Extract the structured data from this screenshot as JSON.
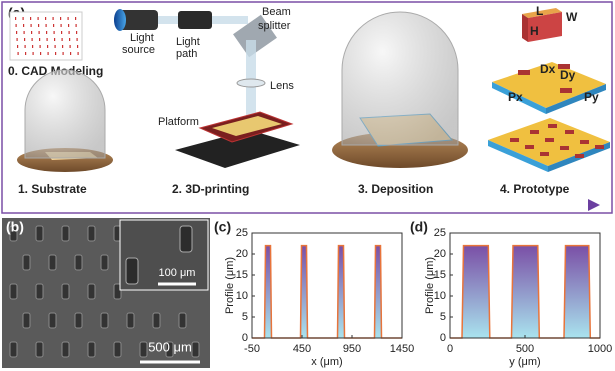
{
  "panel_a": {
    "label": "(a)",
    "light_source": [
      "Light",
      "source"
    ],
    "light_path": [
      "Light",
      "path"
    ],
    "beam_splitter": [
      "Beam",
      "splitter"
    ],
    "lens": "Lens",
    "platform": "Platform",
    "steps": [
      "0. CAD Modeling",
      "1. Substrate",
      "2. 3D-printing",
      "3. Deposition",
      "4. Prototype"
    ],
    "dims": [
      "L",
      "W",
      "H",
      "Dx",
      "Dy",
      "Px",
      "Py"
    ]
  },
  "panel_b": {
    "label": "(b)",
    "inset_scale": "100 μm",
    "main_scale": "500 μm"
  },
  "chart_data": [
    {
      "type": "area",
      "label": "(c)",
      "xlabel": "x (μm)",
      "ylabel": "Profile (μm)",
      "x": [
        -50,
        75,
        85,
        135,
        145,
        435,
        445,
        495,
        505,
        805,
        815,
        865,
        875,
        1175,
        1185,
        1235,
        1245,
        1450
      ],
      "series": [
        {
          "color": "#e8743b",
          "values": [
            0,
            0,
            22,
            22,
            0,
            0,
            22,
            22,
            0,
            0,
            22,
            22,
            0,
            0,
            22,
            22,
            0,
            0
          ]
        }
      ],
      "xlim": [
        -50,
        1450
      ],
      "xticks": [
        -50,
        450,
        950,
        1450
      ],
      "ylim": [
        0,
        25
      ],
      "yticks": [
        0,
        5,
        10,
        15,
        20,
        25
      ]
    },
    {
      "type": "area",
      "label": "(d)",
      "xlabel": "y (μm)",
      "ylabel": "Profile (μm)",
      "x": [
        0,
        80,
        90,
        255,
        265,
        410,
        420,
        585,
        595,
        760,
        770,
        925,
        935,
        1000
      ],
      "series": [
        {
          "color": "#e8743b",
          "values": [
            0,
            0,
            22,
            22,
            0,
            0,
            22,
            22,
            0,
            0,
            22,
            22,
            0,
            0
          ]
        }
      ],
      "xlim": [
        0,
        1000
      ],
      "xticks": [
        0,
        500,
        1000
      ],
      "ylim": [
        0,
        25
      ],
      "yticks": [
        0,
        5,
        10,
        15,
        20,
        25
      ]
    }
  ]
}
